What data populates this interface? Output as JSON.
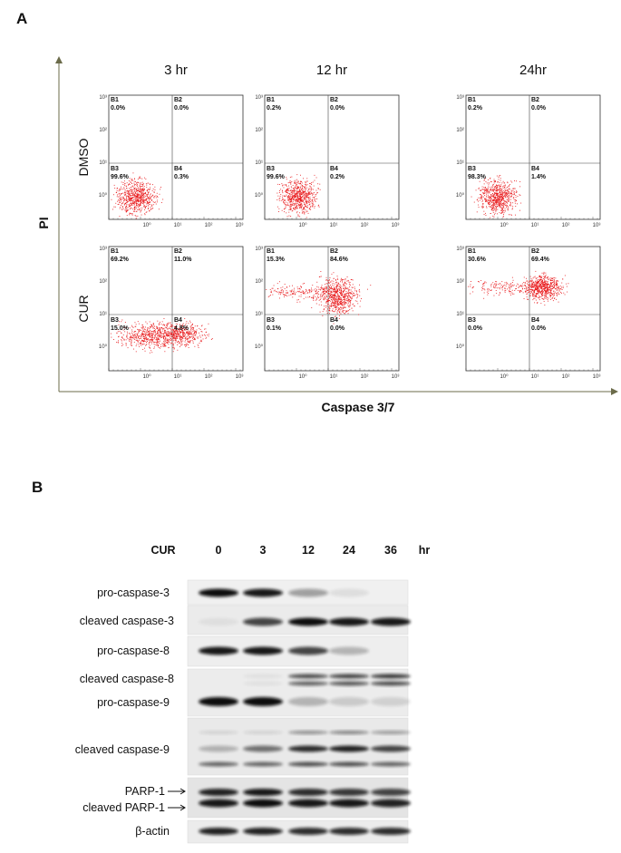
{
  "panel_a": {
    "label": "A",
    "y_axis_label": "PI",
    "x_axis_label": "Caspase 3/7",
    "columns": [
      "3 hr",
      "12 hr",
      "24hr"
    ],
    "y_tick_labels": [
      "10³",
      "10²",
      "10¹",
      "10⁰"
    ],
    "x_tick_labels": [
      "10⁰",
      "10¹",
      "10²",
      "10³"
    ],
    "rows": [
      {
        "label": "DMSO",
        "plots": [
          {
            "quadrants": [
              {
                "name": "B1",
                "value": "0.0%"
              },
              {
                "name": "B2",
                "value": "0.0%"
              },
              {
                "name": "B3",
                "value": "99.6%"
              },
              {
                "name": "B4",
                "value": "0.3%"
              }
            ]
          },
          {
            "quadrants": [
              {
                "name": "B1",
                "value": "0.2%"
              },
              {
                "name": "B2",
                "value": "0.0%"
              },
              {
                "name": "B3",
                "value": "99.6%"
              },
              {
                "name": "B4",
                "value": "0.2%"
              }
            ]
          },
          {
            "quadrants": [
              {
                "name": "B1",
                "value": "0.2%"
              },
              {
                "name": "B2",
                "value": "0.0%"
              },
              {
                "name": "B3",
                "value": "98.3%"
              },
              {
                "name": "B4",
                "value": "1.4%"
              }
            ]
          }
        ]
      },
      {
        "label": "CUR",
        "plots": [
          {
            "quadrants": [
              {
                "name": "B1",
                "value": "69.2%"
              },
              {
                "name": "B2",
                "value": "11.0%"
              },
              {
                "name": "B3",
                "value": "15.0%"
              },
              {
                "name": "B4",
                "value": "4.8%"
              }
            ]
          },
          {
            "quadrants": [
              {
                "name": "B1",
                "value": "15.3%"
              },
              {
                "name": "B2",
                "value": "84.6%"
              },
              {
                "name": "B3",
                "value": "0.1%"
              },
              {
                "name": "B4",
                "value": "0.0%"
              }
            ]
          },
          {
            "quadrants": [
              {
                "name": "B1",
                "value": "30.6%"
              },
              {
                "name": "B2",
                "value": "69.4%"
              },
              {
                "name": "B3",
                "value": "0.0%"
              },
              {
                "name": "B4",
                "value": "0.0%"
              }
            ]
          }
        ]
      }
    ]
  },
  "panel_b": {
    "label": "B",
    "treatment": "CUR",
    "lanes": [
      "0",
      "3",
      "12",
      "24",
      "36"
    ],
    "unit": "hr",
    "bands": [
      "pro-caspase-3",
      "cleaved caspase-3",
      "pro-caspase-8",
      "cleaved caspase-8",
      "pro-caspase-9",
      "cleaved caspase-9",
      "PARP-1",
      "cleaved PARP-1",
      "β-actin"
    ]
  }
}
